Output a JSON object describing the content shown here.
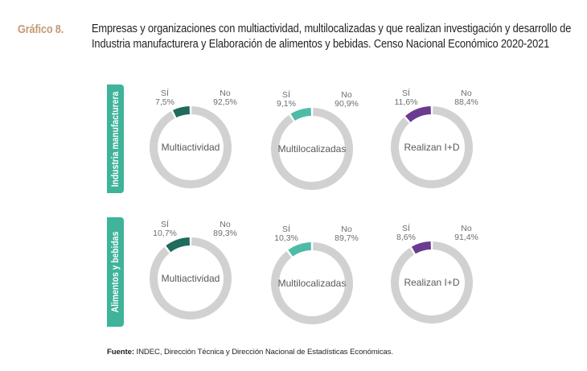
{
  "header": {
    "figure_number": "Gráfico 8.",
    "title": "Empresas y organizaciones con multiactividad, multilocalizadas y que realizan investigación y desarrollo de Industria manufacturera y Elaboración de alimentos y bebidas. Censo Nacional Económico 2020-2021"
  },
  "rows": [
    {
      "label": "Industria manufacturera"
    },
    {
      "label": "Alimentos y bebidas"
    }
  ],
  "colors": {
    "tab": "#3fb49a",
    "no": "#d1d1d1",
    "multiactividad": "#1f6b5c",
    "multilocalizadas": "#4fbba6",
    "realizan_id": "#6b3a91"
  },
  "chart_data": {
    "type": "pie",
    "subtype": "donut",
    "title": "Empresas y organizaciones con multiactividad, multilocalizadas y que realizan investigación y desarrollo de Industria manufacturera y Elaboración de alimentos y bebidas. Censo Nacional Económico 2020-2021",
    "slice_labels": [
      "Sí",
      "No"
    ],
    "charts": [
      {
        "row": "Industria manufacturera",
        "name": "Multiactividad",
        "color_key": "multiactividad",
        "si_label": "SÍ",
        "no_label": "No",
        "si": 7.5,
        "no": 92.5,
        "si_text": "7,5%",
        "no_text": "92,5%"
      },
      {
        "row": "Industria manufacturera",
        "name": "Multilocalizadas",
        "color_key": "multilocalizadas",
        "si_label": "SÍ",
        "no_label": "No",
        "si": 9.1,
        "no": 90.9,
        "si_text": "9,1%",
        "no_text": "90,9%"
      },
      {
        "row": "Industria manufacturera",
        "name": "Realizan I+D",
        "color_key": "realizan_id",
        "si_label": "SÍ",
        "no_label": "No",
        "si": 11.6,
        "no": 88.4,
        "si_text": "11,6%",
        "no_text": "88,4%"
      },
      {
        "row": "Alimentos y bebidas",
        "name": "Multiactividad",
        "color_key": "multiactividad",
        "si_label": "SÍ",
        "no_label": "No",
        "si": 10.7,
        "no": 89.3,
        "si_text": "10,7%",
        "no_text": "89,3%"
      },
      {
        "row": "Alimentos y bebidas",
        "name": "Multilocalizadas",
        "color_key": "multilocalizadas",
        "si_label": "SÍ",
        "no_label": "No",
        "si": 10.3,
        "no": 89.7,
        "si_text": "10,3%",
        "no_text": "89,7%"
      },
      {
        "row": "Alimentos y bebidas",
        "name": "Realizan I+D",
        "color_key": "realizan_id",
        "si_label": "SÍ",
        "no_label": "No",
        "si": 8.6,
        "no": 91.4,
        "si_text": "8,6%",
        "no_text": "91,4%"
      }
    ]
  },
  "source": {
    "label": "Fuente:",
    "text": " INDEC, Dirección Técnica y Dirección Nacional de Estadísticas Económicas."
  }
}
